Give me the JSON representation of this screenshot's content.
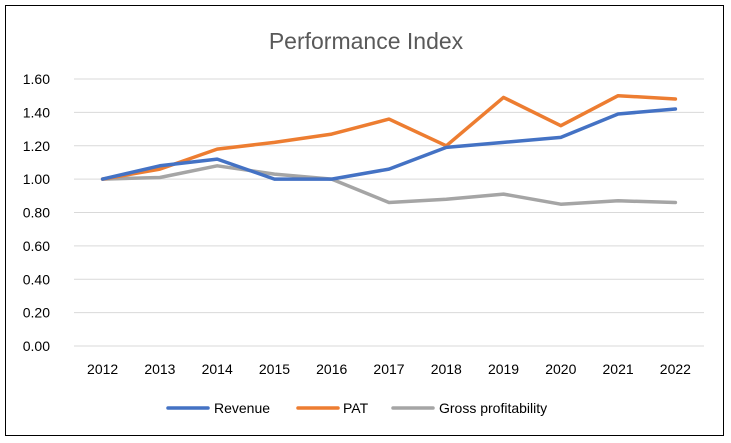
{
  "chart_data": {
    "type": "line",
    "title": "Performance Index",
    "xlabel": "",
    "ylabel": "",
    "categories": [
      "2012",
      "2013",
      "2014",
      "2015",
      "2016",
      "2017",
      "2018",
      "2019",
      "2020",
      "2021",
      "2022"
    ],
    "ylim": [
      0,
      1.6
    ],
    "yticks": [
      "0.00",
      "0.20",
      "0.40",
      "0.60",
      "0.80",
      "1.00",
      "1.20",
      "1.40",
      "1.60"
    ],
    "grid": true,
    "legend_position": "bottom",
    "series": [
      {
        "name": "Revenue",
        "color": "#4472C4",
        "values": [
          1.0,
          1.08,
          1.12,
          1.0,
          1.0,
          1.06,
          1.19,
          1.22,
          1.25,
          1.39,
          1.42
        ]
      },
      {
        "name": "PAT",
        "color": "#ED7D31",
        "values": [
          1.0,
          1.06,
          1.18,
          1.22,
          1.27,
          1.36,
          1.2,
          1.49,
          1.32,
          1.5,
          1.48
        ]
      },
      {
        "name": "Gross profitability",
        "color": "#A5A5A5",
        "values": [
          1.0,
          1.01,
          1.08,
          1.03,
          1.0,
          0.86,
          0.88,
          0.91,
          0.85,
          0.87,
          0.86
        ]
      }
    ]
  }
}
